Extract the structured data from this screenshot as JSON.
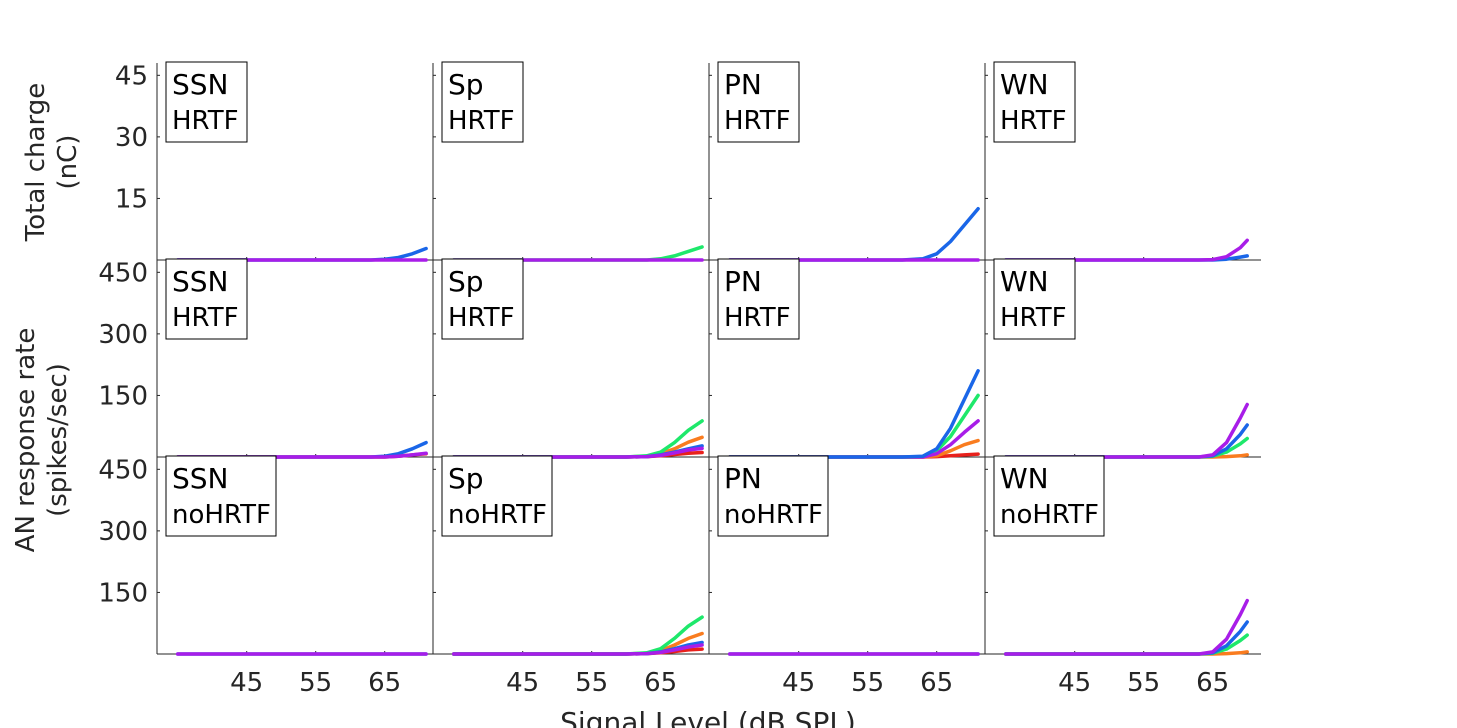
{
  "figure": {
    "row_ylabels": [
      [
        "Total charge",
        "(nC)"
      ],
      [
        "AN response rate",
        "(spikes/sec)"
      ]
    ],
    "xlabel": "Signal Level (dB SPL)"
  },
  "colors": {
    "red": "#e8211c",
    "orange": "#f97c1f",
    "green": "#1ee86b",
    "blue": "#1a66e8",
    "magenta": "#a81de8",
    "axis": "#262626"
  },
  "chart_data": [
    {
      "type": "line",
      "row": 0,
      "col": 0,
      "box_title": "SSN",
      "box_subtitle": "HRTF",
      "x": [
        35,
        40,
        45,
        50,
        55,
        60,
        63,
        65,
        67,
        69,
        71
      ],
      "ylim": [
        0,
        48
      ],
      "yticks": [
        15,
        30,
        45
      ],
      "series": [
        {
          "color": "blue",
          "values": [
            0,
            0,
            0,
            0,
            0,
            0,
            0,
            0.2,
            0.6,
            1.5,
            2.8
          ]
        },
        {
          "color": "magenta",
          "values": [
            0,
            0,
            0,
            0,
            0,
            0,
            0,
            0,
            0,
            0,
            0
          ]
        }
      ]
    },
    {
      "type": "line",
      "row": 0,
      "col": 1,
      "box_title": "Sp",
      "box_subtitle": "HRTF",
      "x": [
        35,
        40,
        45,
        50,
        55,
        60,
        63,
        65,
        67,
        69,
        71
      ],
      "ylim": [
        0,
        48
      ],
      "yticks": [
        15,
        30,
        45
      ],
      "series": [
        {
          "color": "green",
          "values": [
            0,
            0,
            0,
            0,
            0,
            0,
            0,
            0.3,
            1.0,
            2.1,
            3.2
          ]
        },
        {
          "color": "magenta",
          "values": [
            0,
            0,
            0,
            0,
            0,
            0,
            0,
            0,
            0,
            0,
            0
          ]
        }
      ]
    },
    {
      "type": "line",
      "row": 0,
      "col": 2,
      "box_title": "PN",
      "box_subtitle": "HRTF",
      "x": [
        35,
        40,
        45,
        50,
        55,
        60,
        63,
        65,
        67,
        69,
        71
      ],
      "ylim": [
        0,
        48
      ],
      "yticks": [
        15,
        30,
        45
      ],
      "series": [
        {
          "color": "blue",
          "values": [
            0,
            0,
            0,
            0,
            0,
            0,
            0.3,
            1.5,
            4.5,
            8.5,
            12.5
          ]
        },
        {
          "color": "magenta",
          "values": [
            0,
            0,
            0,
            0,
            0,
            0,
            0,
            0,
            0,
            0,
            0
          ]
        }
      ]
    },
    {
      "type": "line",
      "row": 0,
      "col": 3,
      "box_title": "WN",
      "box_subtitle": "HRTF",
      "x": [
        35,
        40,
        45,
        50,
        55,
        60,
        63,
        65,
        67,
        69,
        70
      ],
      "ylim": [
        0,
        48
      ],
      "yticks": [
        15,
        30,
        45
      ],
      "series": [
        {
          "color": "blue",
          "values": [
            0,
            0,
            0,
            0,
            0,
            0,
            0,
            0,
            0.2,
            0.7,
            1.0
          ]
        },
        {
          "color": "magenta",
          "values": [
            0,
            0,
            0,
            0,
            0,
            0,
            0,
            0.1,
            0.8,
            3.0,
            4.8
          ]
        }
      ]
    },
    {
      "type": "line",
      "row": 1,
      "col": 0,
      "box_title": "SSN",
      "box_subtitle": "HRTF",
      "x": [
        35,
        40,
        45,
        50,
        55,
        60,
        63,
        65,
        67,
        69,
        71
      ],
      "ylim": [
        0,
        480
      ],
      "yticks": [
        150,
        300,
        450
      ],
      "series": [
        {
          "color": "red",
          "values": [
            0,
            0,
            0,
            0,
            0,
            0,
            0,
            0,
            2,
            5,
            8
          ]
        },
        {
          "color": "blue",
          "values": [
            0,
            0,
            0,
            0,
            0,
            0,
            0,
            2,
            8,
            20,
            35
          ]
        },
        {
          "color": "magenta",
          "values": [
            0,
            0,
            0,
            0,
            0,
            0,
            0,
            0,
            2,
            5,
            9
          ]
        }
      ]
    },
    {
      "type": "line",
      "row": 1,
      "col": 1,
      "box_title": "Sp",
      "box_subtitle": "HRTF",
      "x": [
        35,
        40,
        45,
        50,
        55,
        60,
        63,
        65,
        67,
        69,
        71
      ],
      "ylim": [
        0,
        480
      ],
      "yticks": [
        150,
        300,
        450
      ],
      "series": [
        {
          "color": "red",
          "values": [
            0,
            0,
            0,
            0,
            0,
            0,
            1,
            3,
            6,
            9,
            11
          ]
        },
        {
          "color": "orange",
          "values": [
            0,
            0,
            0,
            0,
            0,
            0,
            2,
            8,
            20,
            36,
            48
          ]
        },
        {
          "color": "green",
          "values": [
            0,
            0,
            0,
            0,
            0,
            0,
            3,
            12,
            35,
            65,
            88
          ]
        },
        {
          "color": "blue",
          "values": [
            0,
            0,
            0,
            0,
            0,
            0,
            1,
            5,
            12,
            20,
            27
          ]
        },
        {
          "color": "magenta",
          "values": [
            0,
            0,
            0,
            0,
            0,
            0,
            1,
            4,
            10,
            17,
            21
          ]
        }
      ]
    },
    {
      "type": "line",
      "row": 1,
      "col": 2,
      "box_title": "PN",
      "box_subtitle": "HRTF",
      "x": [
        35,
        40,
        45,
        50,
        55,
        60,
        63,
        65,
        67,
        69,
        71
      ],
      "ylim": [
        0,
        480
      ],
      "yticks": [
        150,
        300,
        450
      ],
      "series": [
        {
          "color": "red",
          "values": [
            0,
            0,
            0,
            0,
            0,
            0,
            0,
            1,
            3,
            5,
            7
          ]
        },
        {
          "color": "orange",
          "values": [
            0,
            0,
            0,
            0,
            0,
            0,
            0,
            3,
            15,
            30,
            40
          ]
        },
        {
          "color": "green",
          "values": [
            0,
            0,
            0,
            0,
            0,
            0,
            1,
            15,
            50,
            100,
            150
          ]
        },
        {
          "color": "magenta",
          "values": [
            0,
            0,
            0,
            0,
            0,
            0,
            0,
            8,
            30,
            60,
            88
          ]
        },
        {
          "color": "blue",
          "values": [
            0,
            0,
            0,
            0,
            0,
            0,
            2,
            20,
            70,
            140,
            210
          ]
        }
      ]
    },
    {
      "type": "line",
      "row": 1,
      "col": 3,
      "box_title": "WN",
      "box_subtitle": "HRTF",
      "x": [
        35,
        40,
        45,
        50,
        55,
        60,
        63,
        65,
        67,
        69,
        70
      ],
      "ylim": [
        0,
        480
      ],
      "yticks": [
        150,
        300,
        450
      ],
      "series": [
        {
          "color": "orange",
          "values": [
            0,
            0,
            0,
            0,
            0,
            0,
            0,
            0,
            1,
            3,
            5
          ]
        },
        {
          "color": "green",
          "values": [
            0,
            0,
            0,
            0,
            0,
            0,
            0,
            2,
            12,
            32,
            45
          ]
        },
        {
          "color": "blue",
          "values": [
            0,
            0,
            0,
            0,
            0,
            0,
            0,
            3,
            20,
            55,
            78
          ]
        },
        {
          "color": "magenta",
          "values": [
            0,
            0,
            0,
            0,
            0,
            0,
            0,
            5,
            35,
            95,
            128
          ]
        }
      ]
    },
    {
      "type": "line",
      "row": 2,
      "col": 0,
      "box_title": "SSN",
      "box_subtitle": "noHRTF",
      "x": [
        35,
        40,
        45,
        50,
        55,
        60,
        63,
        65,
        67,
        69,
        71
      ],
      "ylim": [
        0,
        480
      ],
      "yticks": [
        150,
        300,
        450
      ],
      "series": [
        {
          "color": "blue",
          "values": [
            0,
            0,
            0,
            0,
            0,
            0,
            0,
            0,
            0,
            0,
            0
          ]
        },
        {
          "color": "magenta",
          "values": [
            0,
            0,
            0,
            0,
            0,
            0,
            0,
            0,
            0,
            0,
            0
          ]
        }
      ]
    },
    {
      "type": "line",
      "row": 2,
      "col": 1,
      "box_title": "Sp",
      "box_subtitle": "noHRTF",
      "x": [
        35,
        40,
        45,
        50,
        55,
        60,
        63,
        65,
        67,
        69,
        71
      ],
      "ylim": [
        0,
        480
      ],
      "yticks": [
        150,
        300,
        450
      ],
      "series": [
        {
          "color": "red",
          "values": [
            0,
            0,
            0,
            0,
            0,
            0,
            1,
            3,
            6,
            10,
            12
          ]
        },
        {
          "color": "orange",
          "values": [
            0,
            0,
            0,
            0,
            0,
            0,
            2,
            8,
            22,
            38,
            50
          ]
        },
        {
          "color": "green",
          "values": [
            0,
            0,
            0,
            0,
            0,
            0,
            3,
            13,
            38,
            68,
            90
          ]
        },
        {
          "color": "blue",
          "values": [
            0,
            0,
            0,
            0,
            0,
            0,
            1,
            5,
            13,
            22,
            28
          ]
        },
        {
          "color": "magenta",
          "values": [
            0,
            0,
            0,
            0,
            0,
            0,
            1,
            4,
            10,
            17,
            22
          ]
        }
      ]
    },
    {
      "type": "line",
      "row": 2,
      "col": 2,
      "box_title": "PN",
      "box_subtitle": "noHRTF",
      "x": [
        35,
        40,
        45,
        50,
        55,
        60,
        63,
        65,
        67,
        69,
        71
      ],
      "ylim": [
        0,
        480
      ],
      "yticks": [
        150,
        300,
        450
      ],
      "series": [
        {
          "color": "blue",
          "values": [
            0,
            0,
            0,
            0,
            0,
            0,
            0,
            0,
            0,
            0,
            0
          ]
        },
        {
          "color": "magenta",
          "values": [
            0,
            0,
            0,
            0,
            0,
            0,
            0,
            0,
            0,
            0,
            0
          ]
        }
      ]
    },
    {
      "type": "line",
      "row": 2,
      "col": 3,
      "box_title": "WN",
      "box_subtitle": "noHRTF",
      "x": [
        35,
        40,
        45,
        50,
        55,
        60,
        63,
        65,
        67,
        69,
        70
      ],
      "ylim": [
        0,
        480
      ],
      "yticks": [
        150,
        300,
        450
      ],
      "series": [
        {
          "color": "orange",
          "values": [
            0,
            0,
            0,
            0,
            0,
            0,
            0,
            0,
            1,
            3,
            5
          ]
        },
        {
          "color": "green",
          "values": [
            0,
            0,
            0,
            0,
            0,
            0,
            0,
            2,
            12,
            33,
            46
          ]
        },
        {
          "color": "blue",
          "values": [
            0,
            0,
            0,
            0,
            0,
            0,
            0,
            3,
            20,
            55,
            78
          ]
        },
        {
          "color": "magenta",
          "values": [
            0,
            0,
            0,
            0,
            0,
            0,
            0,
            5,
            36,
            96,
            130
          ]
        }
      ]
    }
  ],
  "x_axis": {
    "xlim": [
      32,
      72
    ],
    "xticks": [
      45,
      55,
      65
    ]
  }
}
